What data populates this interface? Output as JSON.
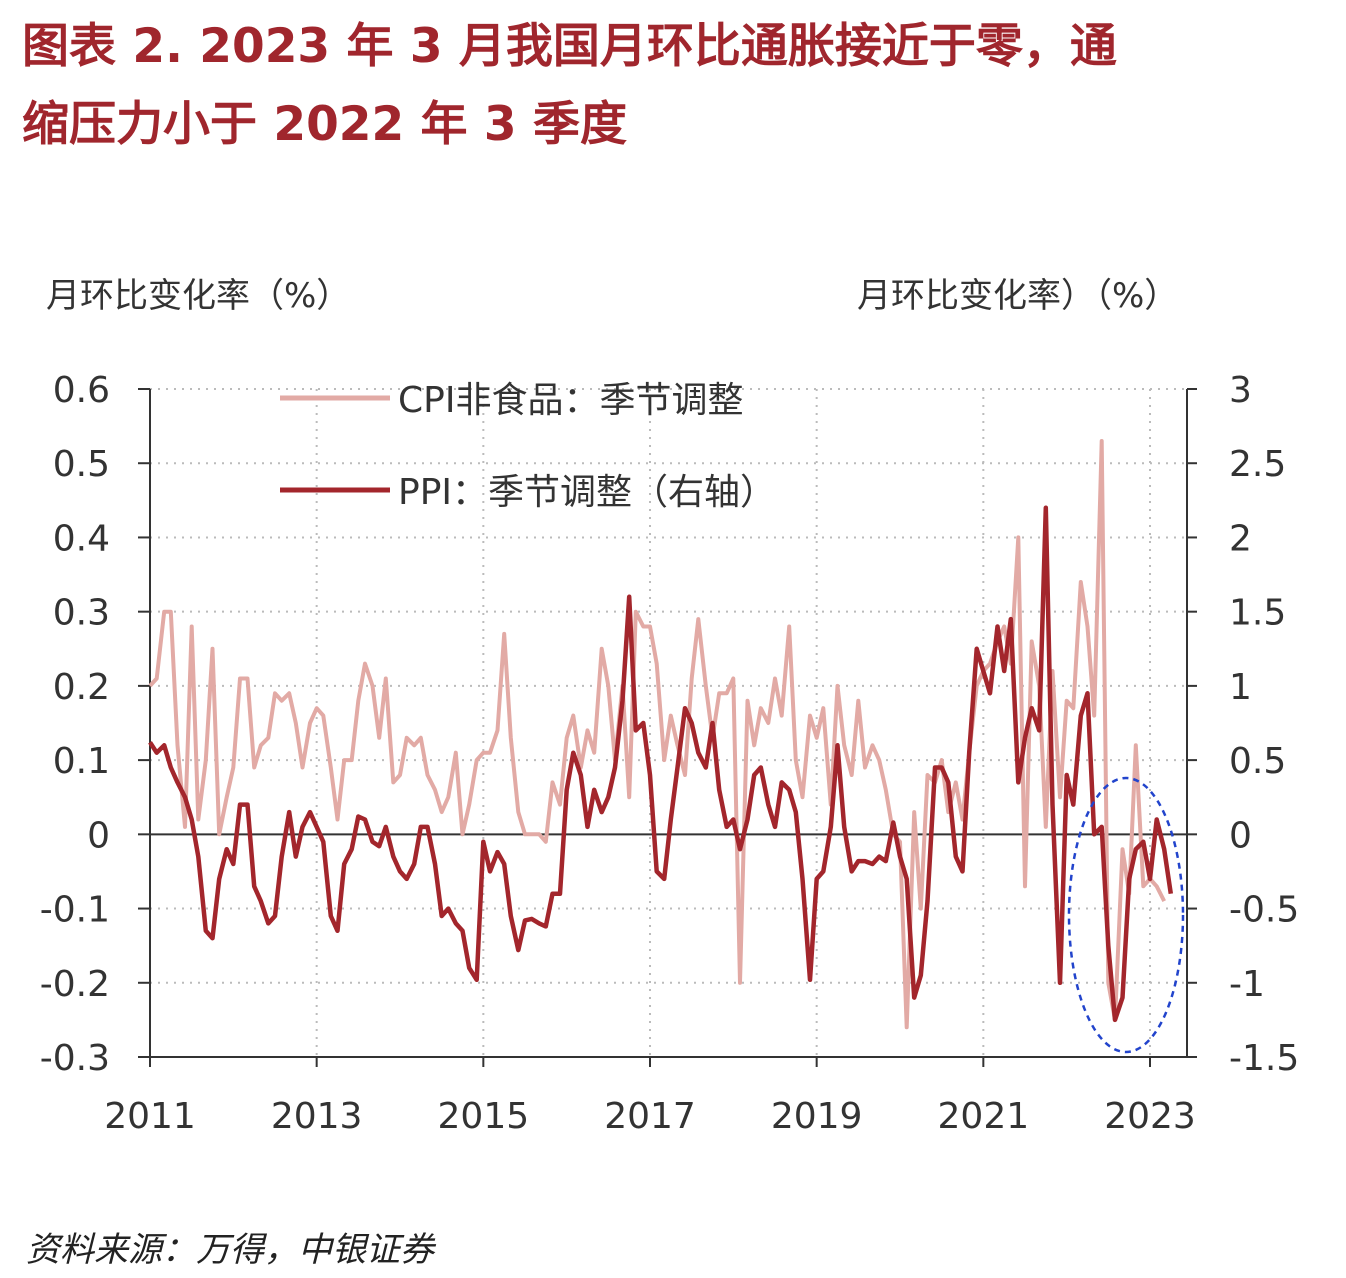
{
  "title_line1": "图表 2.   2023 年 3 月我国月环比通胀接近于零，通",
  "title_line2": "缩压力小于 2022 年 3 季度",
  "source": "资料来源：万得，中银证券",
  "chart_data": {
    "type": "line",
    "left_axis_label": "月环比变化率（%）",
    "right_axis_label": "月环比变化率）（%）",
    "ylim_left": [
      -0.3,
      0.6
    ],
    "ylim_right": [
      -1.5,
      3
    ],
    "left_ticks": [
      "0.6",
      "0.5",
      "0.4",
      "0.3",
      "0.2",
      "0.1",
      "0",
      "-0.1",
      "-0.2",
      "-0.3"
    ],
    "right_ticks": [
      "3",
      "2.5",
      "2",
      "1.5",
      "1",
      "0.5",
      "0",
      "-0.5",
      "-1",
      "-1.5"
    ],
    "x_ticks": [
      "2011",
      "2013",
      "2015",
      "2017",
      "2019",
      "2021",
      "2023"
    ],
    "xlim": [
      2011.0,
      2023.75
    ],
    "grid": "dotted",
    "legend_position": "top-left",
    "colors": {
      "cpi": "#e2aaa5",
      "ppi": "#a3262c",
      "ellipse": "#2244cc"
    },
    "series": [
      {
        "name": "CPI非食品：季节调整",
        "axis": "left",
        "points": [
          [
            2011.0,
            0.2
          ],
          [
            2011.08,
            0.21
          ],
          [
            2011.17,
            0.3
          ],
          [
            2011.25,
            0.3
          ],
          [
            2011.33,
            0.12
          ],
          [
            2011.42,
            0.01
          ],
          [
            2011.5,
            0.28
          ],
          [
            2011.58,
            0.02
          ],
          [
            2011.67,
            0.1
          ],
          [
            2011.75,
            0.25
          ],
          [
            2011.83,
            0.0
          ],
          [
            2011.92,
            0.05
          ],
          [
            2012.0,
            0.09
          ],
          [
            2012.08,
            0.21
          ],
          [
            2012.17,
            0.21
          ],
          [
            2012.25,
            0.09
          ],
          [
            2012.33,
            0.12
          ],
          [
            2012.42,
            0.13
          ],
          [
            2012.5,
            0.19
          ],
          [
            2012.58,
            0.18
          ],
          [
            2012.67,
            0.19
          ],
          [
            2012.75,
            0.15
          ],
          [
            2012.83,
            0.09
          ],
          [
            2012.92,
            0.15
          ],
          [
            2013.0,
            0.17
          ],
          [
            2013.08,
            0.16
          ],
          [
            2013.17,
            0.09
          ],
          [
            2013.25,
            0.02
          ],
          [
            2013.33,
            0.1
          ],
          [
            2013.42,
            0.1
          ],
          [
            2013.5,
            0.18
          ],
          [
            2013.58,
            0.23
          ],
          [
            2013.67,
            0.2
          ],
          [
            2013.75,
            0.13
          ],
          [
            2013.83,
            0.21
          ],
          [
            2013.92,
            0.07
          ],
          [
            2014.0,
            0.08
          ],
          [
            2014.08,
            0.13
          ],
          [
            2014.17,
            0.12
          ],
          [
            2014.25,
            0.13
          ],
          [
            2014.33,
            0.08
          ],
          [
            2014.42,
            0.06
          ],
          [
            2014.5,
            0.03
          ],
          [
            2014.58,
            0.05
          ],
          [
            2014.67,
            0.11
          ],
          [
            2014.75,
            0.0
          ],
          [
            2014.83,
            0.04
          ],
          [
            2014.92,
            0.1
          ],
          [
            2015.0,
            0.11
          ],
          [
            2015.08,
            0.11
          ],
          [
            2015.17,
            0.14
          ],
          [
            2015.25,
            0.27
          ],
          [
            2015.33,
            0.13
          ],
          [
            2015.42,
            0.03
          ],
          [
            2015.5,
            0.0
          ],
          [
            2015.58,
            0.0
          ],
          [
            2015.67,
            0.0
          ],
          [
            2015.75,
            -0.01
          ],
          [
            2015.83,
            0.07
          ],
          [
            2015.92,
            0.04
          ],
          [
            2016.0,
            0.13
          ],
          [
            2016.08,
            0.16
          ],
          [
            2016.17,
            0.09
          ],
          [
            2016.25,
            0.14
          ],
          [
            2016.33,
            0.11
          ],
          [
            2016.42,
            0.25
          ],
          [
            2016.5,
            0.2
          ],
          [
            2016.58,
            0.1
          ],
          [
            2016.67,
            0.2
          ],
          [
            2016.75,
            0.05
          ],
          [
            2016.83,
            0.3
          ],
          [
            2016.92,
            0.28
          ],
          [
            2017.0,
            0.28
          ],
          [
            2017.08,
            0.23
          ],
          [
            2017.17,
            0.1
          ],
          [
            2017.25,
            0.16
          ],
          [
            2017.33,
            0.12
          ],
          [
            2017.42,
            0.08
          ],
          [
            2017.5,
            0.21
          ],
          [
            2017.58,
            0.29
          ],
          [
            2017.67,
            0.2
          ],
          [
            2017.75,
            0.13
          ],
          [
            2017.83,
            0.19
          ],
          [
            2017.92,
            0.19
          ],
          [
            2018.0,
            0.21
          ],
          [
            2018.08,
            -0.2
          ],
          [
            2018.17,
            0.18
          ],
          [
            2018.25,
            0.12
          ],
          [
            2018.33,
            0.17
          ],
          [
            2018.42,
            0.15
          ],
          [
            2018.5,
            0.21
          ],
          [
            2018.58,
            0.16
          ],
          [
            2018.67,
            0.28
          ],
          [
            2018.75,
            0.1
          ],
          [
            2018.83,
            0.05
          ],
          [
            2018.92,
            0.16
          ],
          [
            2019.0,
            0.13
          ],
          [
            2019.08,
            0.17
          ],
          [
            2019.17,
            0.04
          ],
          [
            2019.25,
            0.2
          ],
          [
            2019.33,
            0.12
          ],
          [
            2019.42,
            0.08
          ],
          [
            2019.5,
            0.18
          ],
          [
            2019.58,
            0.09
          ],
          [
            2019.67,
            0.12
          ],
          [
            2019.75,
            0.1
          ],
          [
            2019.83,
            0.06
          ],
          [
            2019.92,
            0.0
          ],
          [
            2020.0,
            -0.01
          ],
          [
            2020.08,
            -0.26
          ],
          [
            2020.17,
            0.03
          ],
          [
            2020.25,
            -0.1
          ],
          [
            2020.33,
            0.08
          ],
          [
            2020.42,
            0.07
          ],
          [
            2020.5,
            0.1
          ],
          [
            2020.58,
            0.03
          ],
          [
            2020.67,
            0.07
          ],
          [
            2020.75,
            0.02
          ],
          [
            2020.83,
            0.11
          ],
          [
            2020.92,
            0.2
          ],
          [
            2021.0,
            0.22
          ],
          [
            2021.08,
            0.23
          ],
          [
            2021.17,
            0.26
          ],
          [
            2021.25,
            0.28
          ],
          [
            2021.33,
            0.23
          ],
          [
            2021.42,
            0.4
          ],
          [
            2021.5,
            -0.07
          ],
          [
            2021.58,
            0.26
          ],
          [
            2021.67,
            0.2
          ],
          [
            2021.75,
            0.01
          ],
          [
            2021.83,
            0.22
          ],
          [
            2021.92,
            0.05
          ],
          [
            2022.0,
            0.18
          ],
          [
            2022.08,
            0.17
          ],
          [
            2022.17,
            0.34
          ],
          [
            2022.25,
            0.28
          ],
          [
            2022.33,
            0.16
          ],
          [
            2022.42,
            0.53
          ],
          [
            2022.5,
            -0.2
          ],
          [
            2022.58,
            -0.25
          ],
          [
            2022.67,
            -0.02
          ],
          [
            2022.75,
            -0.08
          ],
          [
            2022.83,
            0.12
          ],
          [
            2022.92,
            -0.07
          ],
          [
            2023.0,
            -0.06
          ],
          [
            2023.08,
            -0.07
          ],
          [
            2023.17,
            -0.09
          ]
        ]
      },
      {
        "name": "PPI：季节调整（右轴）",
        "axis": "right",
        "points": [
          [
            2011.0,
            0.62
          ],
          [
            2011.08,
            0.55
          ],
          [
            2011.17,
            0.6
          ],
          [
            2011.25,
            0.45
          ],
          [
            2011.33,
            0.35
          ],
          [
            2011.42,
            0.25
          ],
          [
            2011.5,
            0.1
          ],
          [
            2011.58,
            -0.15
          ],
          [
            2011.67,
            -0.65
          ],
          [
            2011.75,
            -0.7
          ],
          [
            2011.83,
            -0.3
          ],
          [
            2011.92,
            -0.1
          ],
          [
            2012.0,
            -0.2
          ],
          [
            2012.08,
            0.2
          ],
          [
            2012.17,
            0.2
          ],
          [
            2012.25,
            -0.35
          ],
          [
            2012.33,
            -0.45
          ],
          [
            2012.42,
            -0.6
          ],
          [
            2012.5,
            -0.55
          ],
          [
            2012.58,
            -0.15
          ],
          [
            2012.67,
            0.15
          ],
          [
            2012.75,
            -0.15
          ],
          [
            2012.83,
            0.05
          ],
          [
            2012.92,
            0.15
          ],
          [
            2013.0,
            0.05
          ],
          [
            2013.08,
            -0.05
          ],
          [
            2013.17,
            -0.55
          ],
          [
            2013.25,
            -0.65
          ],
          [
            2013.33,
            -0.2
          ],
          [
            2013.42,
            -0.1
          ],
          [
            2013.5,
            0.12
          ],
          [
            2013.58,
            0.1
          ],
          [
            2013.67,
            -0.05
          ],
          [
            2013.75,
            -0.08
          ],
          [
            2013.83,
            0.05
          ],
          [
            2013.92,
            -0.15
          ],
          [
            2014.0,
            -0.25
          ],
          [
            2014.08,
            -0.3
          ],
          [
            2014.17,
            -0.2
          ],
          [
            2014.25,
            0.05
          ],
          [
            2014.33,
            0.05
          ],
          [
            2014.42,
            -0.2
          ],
          [
            2014.5,
            -0.55
          ],
          [
            2014.58,
            -0.5
          ],
          [
            2014.67,
            -0.6
          ],
          [
            2014.75,
            -0.65
          ],
          [
            2014.83,
            -0.9
          ],
          [
            2014.92,
            -0.98
          ],
          [
            2015.0,
            -0.05
          ],
          [
            2015.08,
            -0.25
          ],
          [
            2015.17,
            -0.12
          ],
          [
            2015.25,
            -0.2
          ],
          [
            2015.33,
            -0.55
          ],
          [
            2015.42,
            -0.78
          ],
          [
            2015.5,
            -0.58
          ],
          [
            2015.58,
            -0.57
          ],
          [
            2015.67,
            -0.6
          ],
          [
            2015.75,
            -0.62
          ],
          [
            2015.83,
            -0.4
          ],
          [
            2015.92,
            -0.4
          ],
          [
            2016.0,
            0.3
          ],
          [
            2016.08,
            0.55
          ],
          [
            2016.17,
            0.4
          ],
          [
            2016.25,
            0.05
          ],
          [
            2016.33,
            0.3
          ],
          [
            2016.42,
            0.15
          ],
          [
            2016.5,
            0.25
          ],
          [
            2016.58,
            0.45
          ],
          [
            2016.67,
            0.9
          ],
          [
            2016.75,
            1.6
          ],
          [
            2016.83,
            0.7
          ],
          [
            2016.92,
            0.75
          ],
          [
            2017.0,
            0.4
          ],
          [
            2017.08,
            -0.25
          ],
          [
            2017.17,
            -0.3
          ],
          [
            2017.25,
            0.1
          ],
          [
            2017.33,
            0.45
          ],
          [
            2017.42,
            0.85
          ],
          [
            2017.5,
            0.75
          ],
          [
            2017.58,
            0.55
          ],
          [
            2017.67,
            0.45
          ],
          [
            2017.75,
            0.75
          ],
          [
            2017.83,
            0.3
          ],
          [
            2017.92,
            0.05
          ],
          [
            2018.0,
            0.1
          ],
          [
            2018.08,
            -0.1
          ],
          [
            2018.17,
            0.1
          ],
          [
            2018.25,
            0.4
          ],
          [
            2018.33,
            0.45
          ],
          [
            2018.42,
            0.2
          ],
          [
            2018.5,
            0.05
          ],
          [
            2018.58,
            0.35
          ],
          [
            2018.67,
            0.3
          ],
          [
            2018.75,
            0.15
          ],
          [
            2018.83,
            -0.3
          ],
          [
            2018.92,
            -0.98
          ],
          [
            2019.0,
            -0.3
          ],
          [
            2019.08,
            -0.25
          ],
          [
            2019.17,
            0.05
          ],
          [
            2019.25,
            0.6
          ],
          [
            2019.33,
            0.05
          ],
          [
            2019.42,
            -0.25
          ],
          [
            2019.5,
            -0.18
          ],
          [
            2019.58,
            -0.18
          ],
          [
            2019.67,
            -0.2
          ],
          [
            2019.75,
            -0.15
          ],
          [
            2019.83,
            -0.18
          ],
          [
            2019.92,
            0.08
          ],
          [
            2020.0,
            -0.15
          ],
          [
            2020.08,
            -0.3
          ],
          [
            2020.17,
            -1.1
          ],
          [
            2020.25,
            -0.95
          ],
          [
            2020.33,
            -0.45
          ],
          [
            2020.42,
            0.45
          ],
          [
            2020.5,
            0.45
          ],
          [
            2020.58,
            0.35
          ],
          [
            2020.67,
            -0.15
          ],
          [
            2020.75,
            -0.25
          ],
          [
            2020.83,
            0.55
          ],
          [
            2020.92,
            1.25
          ],
          [
            2021.0,
            1.1
          ],
          [
            2021.08,
            0.95
          ],
          [
            2021.17,
            1.4
          ],
          [
            2021.25,
            1.1
          ],
          [
            2021.33,
            1.45
          ],
          [
            2021.42,
            0.35
          ],
          [
            2021.5,
            0.65
          ],
          [
            2021.58,
            0.85
          ],
          [
            2021.67,
            0.7
          ],
          [
            2021.75,
            2.2
          ],
          [
            2021.83,
            0.2
          ],
          [
            2021.92,
            -1.0
          ],
          [
            2022.0,
            0.4
          ],
          [
            2022.08,
            0.2
          ],
          [
            2022.17,
            0.8
          ],
          [
            2022.25,
            0.95
          ],
          [
            2022.33,
            0.0
          ],
          [
            2022.42,
            0.05
          ],
          [
            2022.5,
            -0.75
          ],
          [
            2022.58,
            -1.25
          ],
          [
            2022.67,
            -1.1
          ],
          [
            2022.75,
            -0.3
          ],
          [
            2022.83,
            -0.1
          ],
          [
            2022.92,
            -0.05
          ],
          [
            2023.0,
            -0.3
          ],
          [
            2023.08,
            0.1
          ],
          [
            2023.17,
            -0.1
          ],
          [
            2023.25,
            -0.4
          ]
        ]
      }
    ]
  }
}
